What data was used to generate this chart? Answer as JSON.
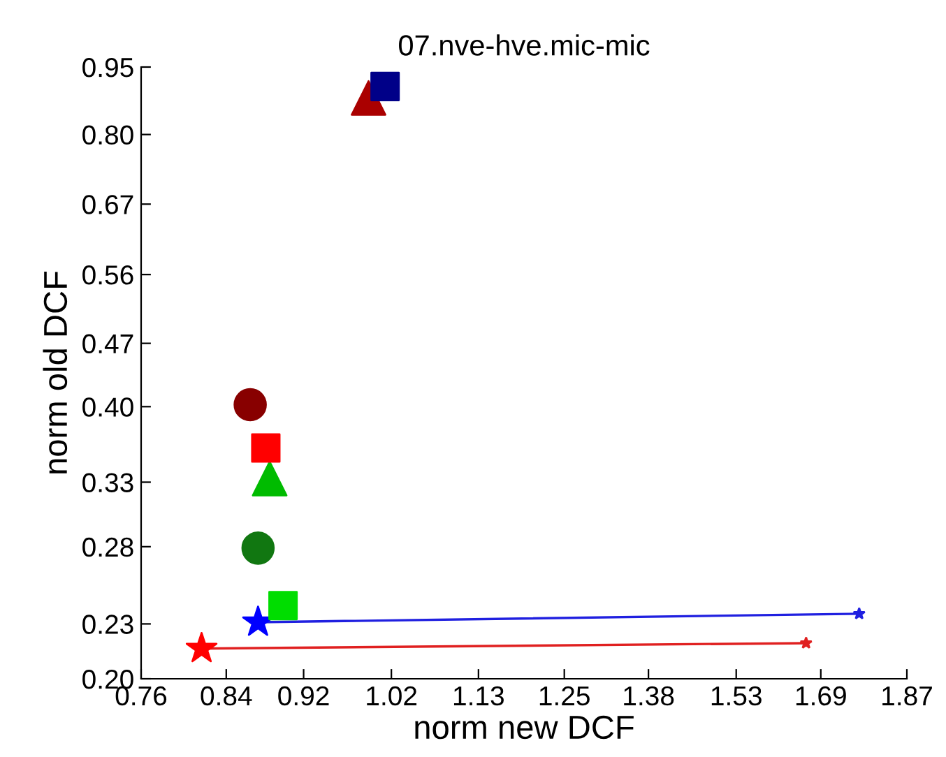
{
  "chart_data": {
    "type": "scatter",
    "title": "07.nve-hve.mic-mic",
    "xlabel": "norm new DCF",
    "ylabel": "norm old DCF",
    "log": "xy",
    "xlim": [
      0.76,
      1.87
    ],
    "xticks": [
      0.76,
      0.84,
      0.92,
      1.02,
      1.13,
      1.25,
      1.38,
      1.53,
      1.69,
      1.87
    ],
    "ylim": [
      0.2,
      0.95
    ],
    "yticks": [
      {
        "value": 0.2,
        "label": "0.20"
      },
      0.23,
      0.28,
      0.33,
      {
        "value": 0.4,
        "label": "0.40"
      },
      0.47,
      0.56,
      0.67,
      {
        "value": 0.8,
        "label": "0.80"
      },
      0.95
    ],
    "grid": false,
    "series": [
      {
        "type": "line",
        "color": "#e02020",
        "x": [
          0.816,
          1.661
        ],
        "values": [
          0.216,
          0.219
        ],
        "marker": "star"
      },
      {
        "type": "line",
        "color": "#2020e0",
        "x": [
          0.872,
          1.768
        ],
        "values": [
          0.231,
          0.236
        ],
        "marker": "star"
      },
      {
        "color": "#ff0000",
        "x": [
          0.816
        ],
        "values": [
          0.216
        ],
        "marker": "star"
      },
      {
        "color": "#0000ff",
        "x": [
          0.872
        ],
        "values": [
          0.231
        ],
        "marker": "star"
      },
      {
        "color": "#00dd00",
        "x": [
          0.898
        ],
        "values": [
          0.241
        ],
        "marker": "square"
      },
      {
        "color": "#117711",
        "x": [
          0.872
        ],
        "values": [
          0.279
        ],
        "marker": "circle"
      },
      {
        "color": "#00bb00",
        "x": [
          0.884
        ],
        "values": [
          0.333
        ],
        "marker": "triangle"
      },
      {
        "color": "#ff0000",
        "x": [
          0.88
        ],
        "values": [
          0.36
        ],
        "marker": "square"
      },
      {
        "color": "#880000",
        "x": [
          0.864
        ],
        "values": [
          0.402
        ],
        "marker": "circle"
      },
      {
        "color": "#aa0000",
        "x": [
          0.993
        ],
        "values": [
          0.878
        ],
        "marker": "triangle"
      },
      {
        "color": "#000088",
        "x": [
          1.0125
        ],
        "values": [
          0.904
        ],
        "marker": "square"
      }
    ]
  }
}
